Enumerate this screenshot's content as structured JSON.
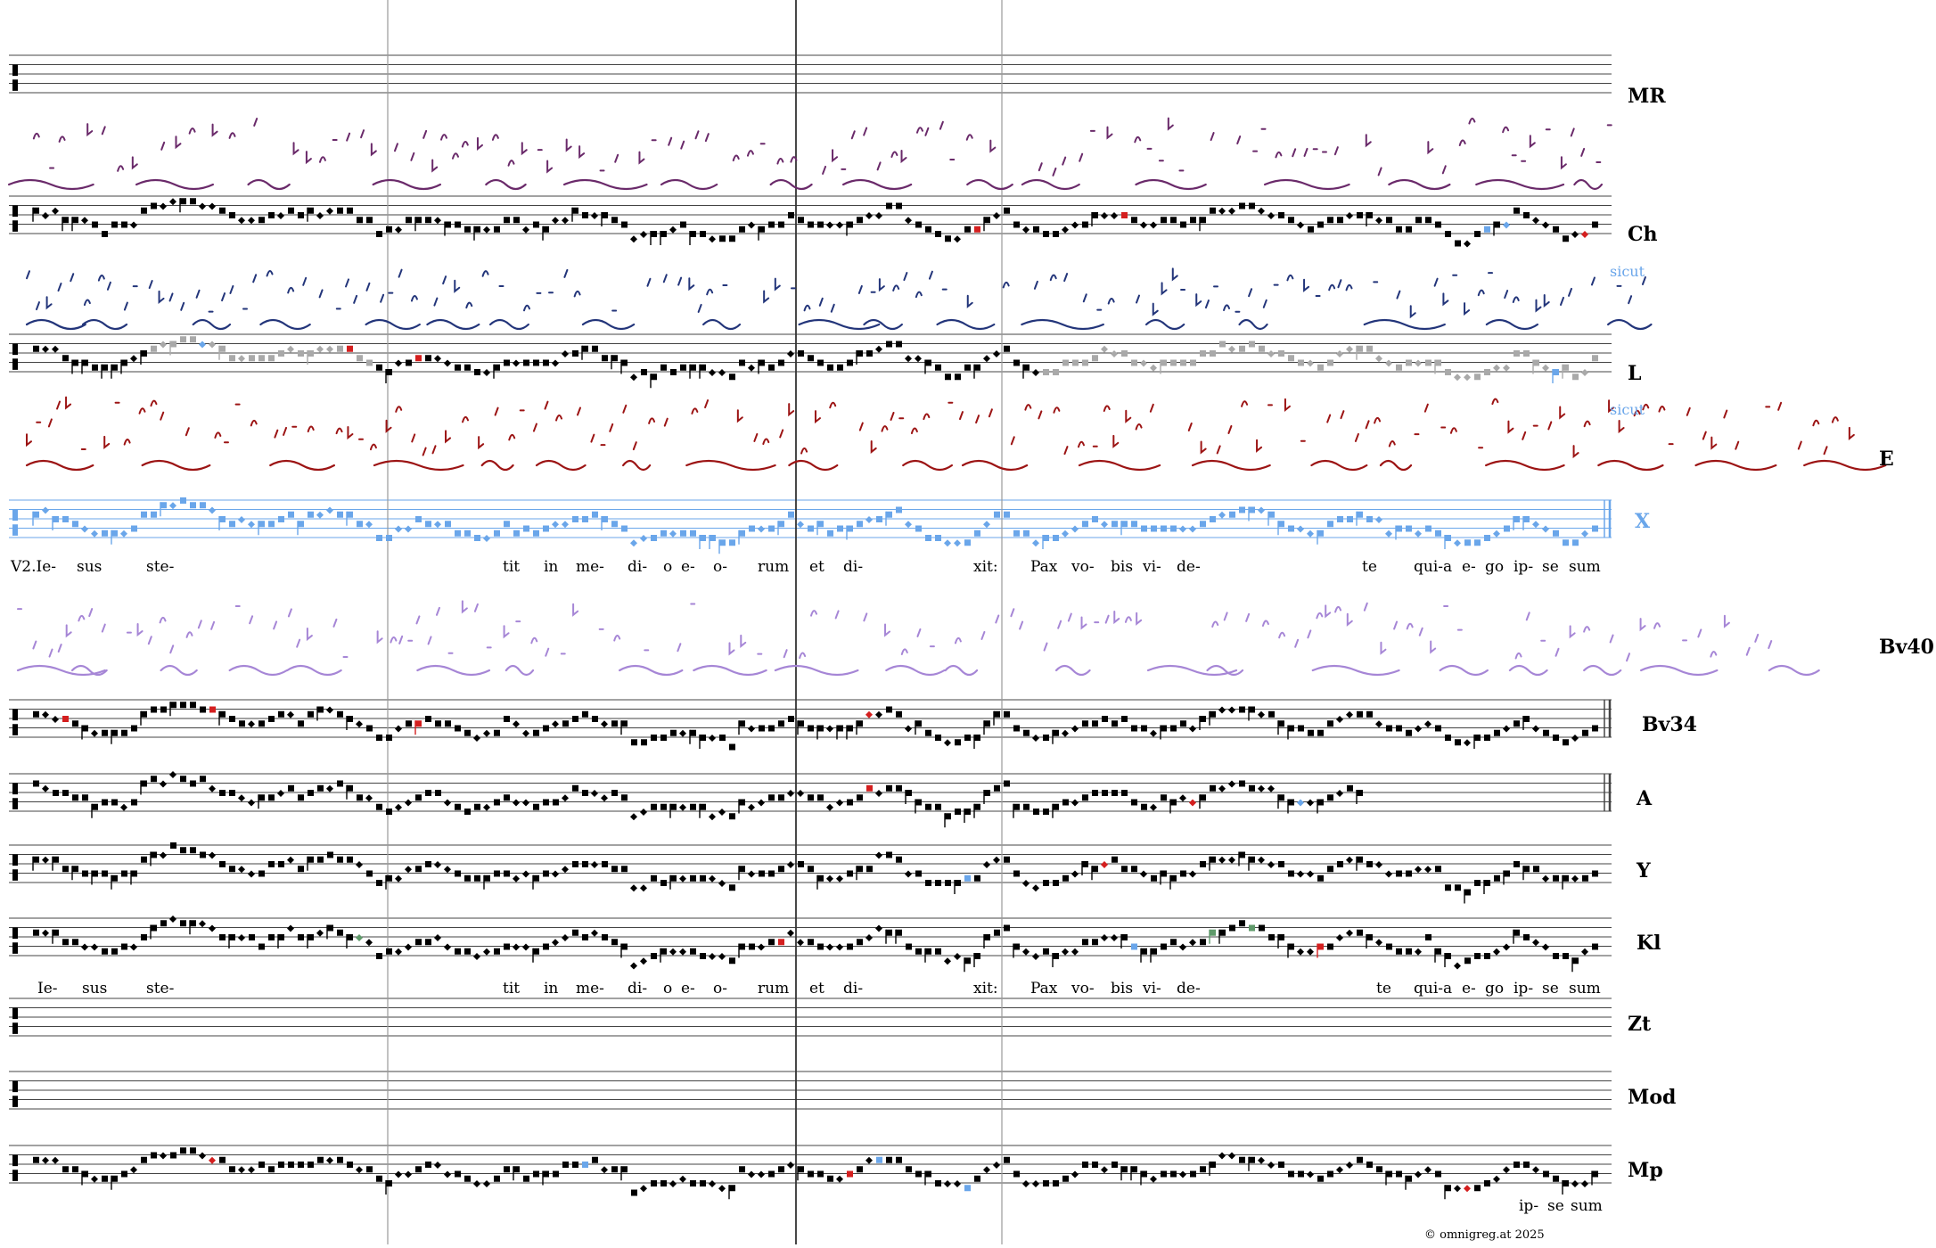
{
  "colors": {
    "neume": "#000000",
    "ghost": "#a9a9a9",
    "blue": "#6aa6ea",
    "red": "#d41f1f",
    "green": "#5f9a6a",
    "ms_ch": "#6a2a6a",
    "ms_l": "#23357a",
    "ms_e": "#9c1414",
    "ms_bv40": "#a686d6",
    "staff": "#444444",
    "divider": "#9a9a9a"
  },
  "labels": {
    "mr": "MR",
    "ch": "Ch",
    "l": "L",
    "e": "E",
    "x": "X",
    "bv40": "Bv40",
    "bv34": "Bv34",
    "a": "A",
    "y": "Y",
    "kl": "Kl",
    "zt": "Zt",
    "mod": "Mod",
    "mp": "Mp"
  },
  "annotations": {
    "sicut_1": "sicut",
    "sicut_2": "sicut"
  },
  "lyrics_v2": [
    "V2.Ie-",
    "sus",
    "ste-",
    "tit",
    "in",
    "me-",
    "di-",
    "o",
    "e-",
    "o-",
    "rum",
    "et",
    "di-",
    "xit:",
    "Pax",
    "vo-",
    "bis",
    "vi-",
    "de-",
    "te",
    "qui-a",
    "e-",
    "go",
    "ip-",
    "se",
    "sum"
  ],
  "lyrics_main": [
    "Ie-",
    "sus",
    "ste-",
    "tit",
    "in",
    "me-",
    "di-",
    "o",
    "e-",
    "o-",
    "rum",
    "et",
    "di-",
    "xit:",
    "Pax",
    "vo-",
    "bis",
    "vi-",
    "de-",
    "te",
    "qui-a",
    "e-",
    "go",
    "ip-",
    "se",
    "sum"
  ],
  "lyrics_mp": [
    "ip-",
    "se",
    "sum"
  ],
  "footer": {
    "copyright": "©  omnigreg.at    2025"
  }
}
